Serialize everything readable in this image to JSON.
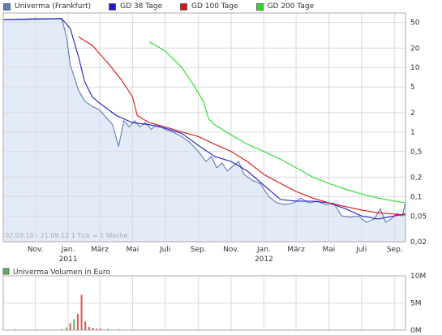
{
  "legend": [
    {
      "label": "Univerma (Frankfurt)",
      "color": "#5b7db8"
    },
    {
      "label": "GD 38 Tage",
      "color": "#1a1acc"
    },
    {
      "label": "GD 100 Tage",
      "color": "#dd1111"
    },
    {
      "label": "GD 200 Tage",
      "color": "#22dd22"
    }
  ],
  "volume_legend": {
    "label": "Univerma Volumen in Euro",
    "color": "#5fae5f"
  },
  "info": "02.09.10 - 21.09.12  1 Tick = 1 Woche",
  "chart_data": [
    {
      "type": "line",
      "title": "",
      "y_scale": "log",
      "ylim": [
        0.02,
        70
      ],
      "y_ticks": [
        "50",
        "20",
        "10",
        "5",
        "2",
        "1",
        "0,5",
        "0,2",
        "0,1",
        "0,05",
        "0,02"
      ],
      "y_tick_values": [
        50,
        20,
        10,
        5,
        2,
        1,
        0.5,
        0.2,
        0.1,
        0.05,
        0.02
      ],
      "x_ticks": [
        "Nov.",
        "Jan.",
        "März",
        "Mai",
        "Juli",
        "Sep.",
        "Nov.",
        "Jan.",
        "März",
        "Mai",
        "Juli",
        "Sep."
      ],
      "x_tick_dates": [
        "2010-11-01",
        "2011-01-01",
        "2011-03-01",
        "2011-05-01",
        "2011-07-01",
        "2011-09-01",
        "2011-11-01",
        "2012-01-01",
        "2012-03-01",
        "2012-05-01",
        "2012-07-01",
        "2012-09-01"
      ],
      "year_labels": [
        {
          "label": "2011",
          "date": "2011-01-01"
        },
        {
          "label": "2012",
          "date": "2012-01-01"
        }
      ],
      "x_range": [
        "2010-09-02",
        "2012-09-21"
      ],
      "grid": true,
      "legend_position": "top",
      "series": [
        {
          "name": "Univerma (Frankfurt)",
          "color": "#5b7db8",
          "area_fill": "#e4ebf8",
          "points": [
            [
              "2010-09-02",
              55
            ],
            [
              "2010-10-01",
              56
            ],
            [
              "2010-11-01",
              57
            ],
            [
              "2010-12-01",
              57
            ],
            [
              "2010-12-20",
              58
            ],
            [
              "2010-12-29",
              30
            ],
            [
              "2011-01-05",
              11
            ],
            [
              "2011-01-20",
              4.5
            ],
            [
              "2011-02-01",
              3
            ],
            [
              "2011-02-15",
              2.5
            ],
            [
              "2011-03-01",
              2.2
            ],
            [
              "2011-03-15",
              1.6
            ],
            [
              "2011-03-25",
              1.3
            ],
            [
              "2011-04-05",
              0.6
            ],
            [
              "2011-04-15",
              1.5
            ],
            [
              "2011-04-25",
              1.2
            ],
            [
              "2011-05-05",
              1.5
            ],
            [
              "2011-05-15",
              1.2
            ],
            [
              "2011-05-25",
              1.4
            ],
            [
              "2011-06-05",
              1.1
            ],
            [
              "2011-06-15",
              1.3
            ],
            [
              "2011-07-01",
              1.1
            ],
            [
              "2011-07-15",
              1.0
            ],
            [
              "2011-08-01",
              0.85
            ],
            [
              "2011-08-15",
              0.7
            ],
            [
              "2011-09-01",
              0.5
            ],
            [
              "2011-09-15",
              0.35
            ],
            [
              "2011-09-25",
              0.42
            ],
            [
              "2011-10-05",
              0.28
            ],
            [
              "2011-10-15",
              0.33
            ],
            [
              "2011-10-25",
              0.25
            ],
            [
              "2011-11-05",
              0.3
            ],
            [
              "2011-11-15",
              0.35
            ],
            [
              "2011-11-25",
              0.22
            ],
            [
              "2011-12-10",
              0.18
            ],
            [
              "2011-12-25",
              0.16
            ],
            [
              "2012-01-10",
              0.1
            ],
            [
              "2012-01-25",
              0.08
            ],
            [
              "2012-02-10",
              0.075
            ],
            [
              "2012-02-25",
              0.08
            ],
            [
              "2012-03-10",
              0.095
            ],
            [
              "2012-03-25",
              0.08
            ],
            [
              "2012-04-10",
              0.085
            ],
            [
              "2012-04-25",
              0.075
            ],
            [
              "2012-05-10",
              0.08
            ],
            [
              "2012-05-25",
              0.05
            ],
            [
              "2012-06-10",
              0.048
            ],
            [
              "2012-06-25",
              0.05
            ],
            [
              "2012-07-10",
              0.04
            ],
            [
              "2012-07-25",
              0.045
            ],
            [
              "2012-08-05",
              0.065
            ],
            [
              "2012-08-15",
              0.04
            ],
            [
              "2012-08-25",
              0.045
            ],
            [
              "2012-09-05",
              0.055
            ],
            [
              "2012-09-15",
              0.05
            ],
            [
              "2012-09-21",
              0.082
            ]
          ]
        },
        {
          "name": "GD 38 Tage",
          "color": "#1a1acc",
          "points": [
            [
              "2010-09-02",
              55
            ],
            [
              "2010-12-20",
              57
            ],
            [
              "2011-01-05",
              40
            ],
            [
              "2011-01-20",
              15
            ],
            [
              "2011-02-01",
              6
            ],
            [
              "2011-02-15",
              3.5
            ],
            [
              "2011-03-01",
              2.8
            ],
            [
              "2011-04-01",
              1.8
            ],
            [
              "2011-05-01",
              1.4
            ],
            [
              "2011-06-01",
              1.3
            ],
            [
              "2011-07-01",
              1.15
            ],
            [
              "2011-08-01",
              0.95
            ],
            [
              "2011-09-01",
              0.62
            ],
            [
              "2011-10-01",
              0.42
            ],
            [
              "2011-11-01",
              0.35
            ],
            [
              "2011-12-01",
              0.25
            ],
            [
              "2012-01-01",
              0.15
            ],
            [
              "2012-02-01",
              0.09
            ],
            [
              "2012-03-01",
              0.085
            ],
            [
              "2012-04-01",
              0.085
            ],
            [
              "2012-05-01",
              0.08
            ],
            [
              "2012-06-01",
              0.065
            ],
            [
              "2012-07-01",
              0.05
            ],
            [
              "2012-08-01",
              0.045
            ],
            [
              "2012-09-21",
              0.054
            ]
          ]
        },
        {
          "name": "GD 100 Tage",
          "color": "#dd1111",
          "points": [
            [
              "2011-01-20",
              30
            ],
            [
              "2011-02-15",
              22
            ],
            [
              "2011-03-15",
              12
            ],
            [
              "2011-04-10",
              6.5
            ],
            [
              "2011-05-01",
              3.5
            ],
            [
              "2011-05-10",
              1.8
            ],
            [
              "2011-06-01",
              1.4
            ],
            [
              "2011-07-01",
              1.2
            ],
            [
              "2011-08-01",
              1.0
            ],
            [
              "2011-09-01",
              0.85
            ],
            [
              "2011-10-01",
              0.65
            ],
            [
              "2011-11-01",
              0.5
            ],
            [
              "2011-12-01",
              0.35
            ],
            [
              "2012-01-01",
              0.22
            ],
            [
              "2012-02-01",
              0.16
            ],
            [
              "2012-03-01",
              0.12
            ],
            [
              "2012-04-01",
              0.095
            ],
            [
              "2012-05-01",
              0.08
            ],
            [
              "2012-06-01",
              0.07
            ],
            [
              "2012-07-01",
              0.062
            ],
            [
              "2012-08-01",
              0.056
            ],
            [
              "2012-09-21",
              0.052
            ]
          ]
        },
        {
          "name": "GD 200 Tage",
          "color": "#22dd22",
          "points": [
            [
              "2011-06-01",
              25
            ],
            [
              "2011-07-01",
              18
            ],
            [
              "2011-08-01",
              10
            ],
            [
              "2011-08-25",
              5
            ],
            [
              "2011-09-10",
              3
            ],
            [
              "2011-09-20",
              1.6
            ],
            [
              "2011-10-01",
              1.3
            ],
            [
              "2011-11-01",
              0.9
            ],
            [
              "2011-12-01",
              0.65
            ],
            [
              "2012-01-01",
              0.5
            ],
            [
              "2012-02-01",
              0.38
            ],
            [
              "2012-03-01",
              0.28
            ],
            [
              "2012-04-01",
              0.2
            ],
            [
              "2012-05-01",
              0.16
            ],
            [
              "2012-06-01",
              0.13
            ],
            [
              "2012-07-01",
              0.11
            ],
            [
              "2012-08-01",
              0.095
            ],
            [
              "2012-09-01",
              0.085
            ],
            [
              "2012-09-21",
              0.08
            ]
          ]
        }
      ]
    },
    {
      "type": "bar",
      "title": "",
      "y_ticks": [
        "10M",
        "5M",
        "0M"
      ],
      "y_tick_values": [
        10,
        5,
        0
      ],
      "ylim": [
        0,
        10
      ],
      "y_unit": "M",
      "grid": true,
      "bars": [
        {
          "date": "2010-09-25",
          "value": 0.15,
          "color": "#5fae5f"
        },
        {
          "date": "2010-12-20",
          "value": 0.2,
          "color": "#5fae5f"
        },
        {
          "date": "2010-12-29",
          "value": 0.5,
          "color": "#5fae5f"
        },
        {
          "date": "2011-01-05",
          "value": 1.3,
          "color": "#dd5555"
        },
        {
          "date": "2011-01-12",
          "value": 2.0,
          "color": "#5fae5f"
        },
        {
          "date": "2011-01-19",
          "value": 3.0,
          "color": "#dd5555"
        },
        {
          "date": "2011-01-26",
          "value": 6.5,
          "color": "#dd5555"
        },
        {
          "date": "2011-02-02",
          "value": 1.6,
          "color": "#dd5555"
        },
        {
          "date": "2011-02-09",
          "value": 0.6,
          "color": "#dd5555"
        },
        {
          "date": "2011-02-16",
          "value": 0.4,
          "color": "#dd5555"
        },
        {
          "date": "2011-02-23",
          "value": 0.25,
          "color": "#dd5555"
        },
        {
          "date": "2011-03-02",
          "value": 0.3,
          "color": "#dd5555"
        },
        {
          "date": "2011-03-16",
          "value": 0.2,
          "color": "#dd5555"
        },
        {
          "date": "2011-04-06",
          "value": 0.15,
          "color": "#dd5555"
        },
        {
          "date": "2011-05-04",
          "value": 0.12,
          "color": "#5fae5f"
        },
        {
          "date": "2011-06-15",
          "value": 0.1,
          "color": "#dd5555"
        },
        {
          "date": "2011-09-07",
          "value": 0.1,
          "color": "#dd5555"
        },
        {
          "date": "2011-11-09",
          "value": 0.08,
          "color": "#5fae5f"
        },
        {
          "date": "2012-02-15",
          "value": 0.1,
          "color": "#dd5555"
        },
        {
          "date": "2012-04-11",
          "value": 0.08,
          "color": "#5fae5f"
        },
        {
          "date": "2012-07-04",
          "value": 0.1,
          "color": "#dd5555"
        },
        {
          "date": "2012-08-29",
          "value": 0.15,
          "color": "#5fae5f"
        }
      ]
    }
  ]
}
